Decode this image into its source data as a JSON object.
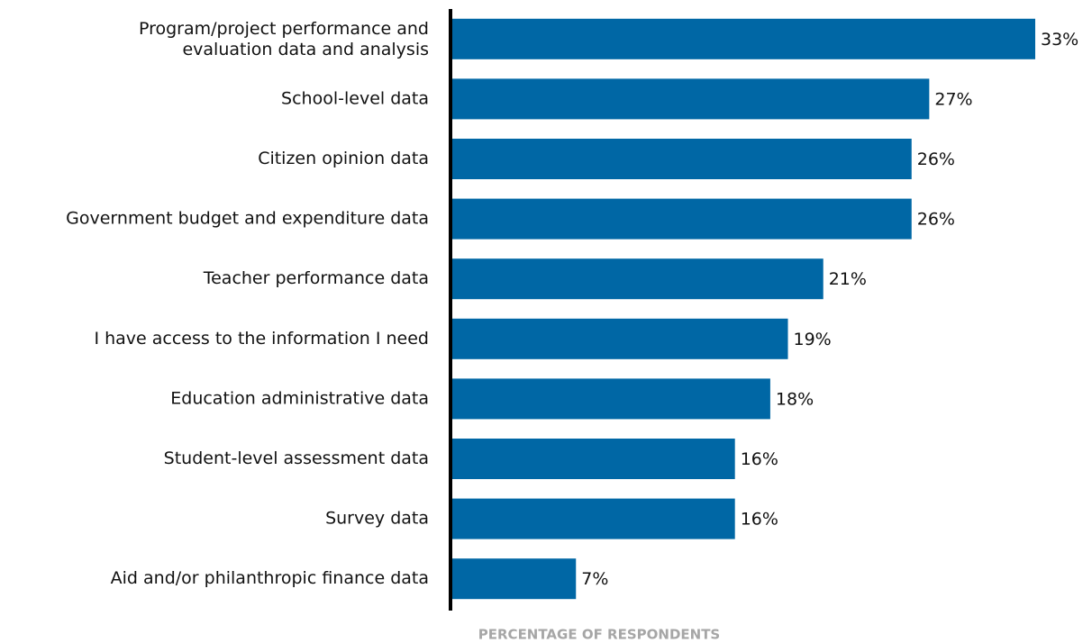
{
  "chart_data": {
    "type": "barh",
    "xlabel": "PERCENTAGE OF RESPONDENTS",
    "categories": [
      "Program/project performance and\nevaluation data and analysis",
      "School-level data",
      "Citizen opinion data",
      "Government budget and expenditure data",
      "Teacher performance data",
      "I have access to the information I need",
      "Education administrative data",
      "Student-level assessment data",
      "Survey data",
      "Aid and/or philanthropic finance data"
    ],
    "values": [
      33,
      27,
      26,
      26,
      21,
      19,
      18,
      16,
      16,
      7
    ],
    "value_labels": [
      "33%",
      "27%",
      "26%",
      "26%",
      "21%",
      "19%",
      "18%",
      "16%",
      "16%",
      "7%"
    ],
    "color": "#0067a5",
    "xlim": [
      0,
      33
    ]
  }
}
